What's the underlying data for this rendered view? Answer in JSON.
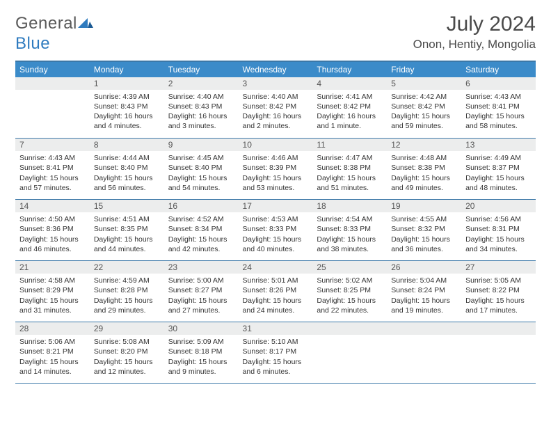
{
  "brand": {
    "word1": "General",
    "word2": "Blue"
  },
  "title": "July 2024",
  "location": "Onon, Hentiy, Mongolia",
  "colors": {
    "header_bg": "#3b8bc9",
    "header_text": "#ffffff",
    "rule": "#3b78a8",
    "daynum_bg": "#eceded",
    "text": "#333333",
    "brand_gray": "#5a5a5a",
    "brand_blue": "#2f7bbf"
  },
  "weekdays": [
    "Sunday",
    "Monday",
    "Tuesday",
    "Wednesday",
    "Thursday",
    "Friday",
    "Saturday"
  ],
  "weeks": [
    [
      null,
      {
        "n": "1",
        "sr": "4:39 AM",
        "ss": "8:43 PM",
        "dl": "16 hours and 4 minutes."
      },
      {
        "n": "2",
        "sr": "4:40 AM",
        "ss": "8:43 PM",
        "dl": "16 hours and 3 minutes."
      },
      {
        "n": "3",
        "sr": "4:40 AM",
        "ss": "8:42 PM",
        "dl": "16 hours and 2 minutes."
      },
      {
        "n": "4",
        "sr": "4:41 AM",
        "ss": "8:42 PM",
        "dl": "16 hours and 1 minute."
      },
      {
        "n": "5",
        "sr": "4:42 AM",
        "ss": "8:42 PM",
        "dl": "15 hours and 59 minutes."
      },
      {
        "n": "6",
        "sr": "4:43 AM",
        "ss": "8:41 PM",
        "dl": "15 hours and 58 minutes."
      }
    ],
    [
      {
        "n": "7",
        "sr": "4:43 AM",
        "ss": "8:41 PM",
        "dl": "15 hours and 57 minutes."
      },
      {
        "n": "8",
        "sr": "4:44 AM",
        "ss": "8:40 PM",
        "dl": "15 hours and 56 minutes."
      },
      {
        "n": "9",
        "sr": "4:45 AM",
        "ss": "8:40 PM",
        "dl": "15 hours and 54 minutes."
      },
      {
        "n": "10",
        "sr": "4:46 AM",
        "ss": "8:39 PM",
        "dl": "15 hours and 53 minutes."
      },
      {
        "n": "11",
        "sr": "4:47 AM",
        "ss": "8:38 PM",
        "dl": "15 hours and 51 minutes."
      },
      {
        "n": "12",
        "sr": "4:48 AM",
        "ss": "8:38 PM",
        "dl": "15 hours and 49 minutes."
      },
      {
        "n": "13",
        "sr": "4:49 AM",
        "ss": "8:37 PM",
        "dl": "15 hours and 48 minutes."
      }
    ],
    [
      {
        "n": "14",
        "sr": "4:50 AM",
        "ss": "8:36 PM",
        "dl": "15 hours and 46 minutes."
      },
      {
        "n": "15",
        "sr": "4:51 AM",
        "ss": "8:35 PM",
        "dl": "15 hours and 44 minutes."
      },
      {
        "n": "16",
        "sr": "4:52 AM",
        "ss": "8:34 PM",
        "dl": "15 hours and 42 minutes."
      },
      {
        "n": "17",
        "sr": "4:53 AM",
        "ss": "8:33 PM",
        "dl": "15 hours and 40 minutes."
      },
      {
        "n": "18",
        "sr": "4:54 AM",
        "ss": "8:33 PM",
        "dl": "15 hours and 38 minutes."
      },
      {
        "n": "19",
        "sr": "4:55 AM",
        "ss": "8:32 PM",
        "dl": "15 hours and 36 minutes."
      },
      {
        "n": "20",
        "sr": "4:56 AM",
        "ss": "8:31 PM",
        "dl": "15 hours and 34 minutes."
      }
    ],
    [
      {
        "n": "21",
        "sr": "4:58 AM",
        "ss": "8:29 PM",
        "dl": "15 hours and 31 minutes."
      },
      {
        "n": "22",
        "sr": "4:59 AM",
        "ss": "8:28 PM",
        "dl": "15 hours and 29 minutes."
      },
      {
        "n": "23",
        "sr": "5:00 AM",
        "ss": "8:27 PM",
        "dl": "15 hours and 27 minutes."
      },
      {
        "n": "24",
        "sr": "5:01 AM",
        "ss": "8:26 PM",
        "dl": "15 hours and 24 minutes."
      },
      {
        "n": "25",
        "sr": "5:02 AM",
        "ss": "8:25 PM",
        "dl": "15 hours and 22 minutes."
      },
      {
        "n": "26",
        "sr": "5:04 AM",
        "ss": "8:24 PM",
        "dl": "15 hours and 19 minutes."
      },
      {
        "n": "27",
        "sr": "5:05 AM",
        "ss": "8:22 PM",
        "dl": "15 hours and 17 minutes."
      }
    ],
    [
      {
        "n": "28",
        "sr": "5:06 AM",
        "ss": "8:21 PM",
        "dl": "15 hours and 14 minutes."
      },
      {
        "n": "29",
        "sr": "5:08 AM",
        "ss": "8:20 PM",
        "dl": "15 hours and 12 minutes."
      },
      {
        "n": "30",
        "sr": "5:09 AM",
        "ss": "8:18 PM",
        "dl": "15 hours and 9 minutes."
      },
      {
        "n": "31",
        "sr": "5:10 AM",
        "ss": "8:17 PM",
        "dl": "15 hours and 6 minutes."
      },
      null,
      null,
      null
    ]
  ],
  "labels": {
    "sunrise": "Sunrise:",
    "sunset": "Sunset:",
    "daylight": "Daylight:"
  }
}
